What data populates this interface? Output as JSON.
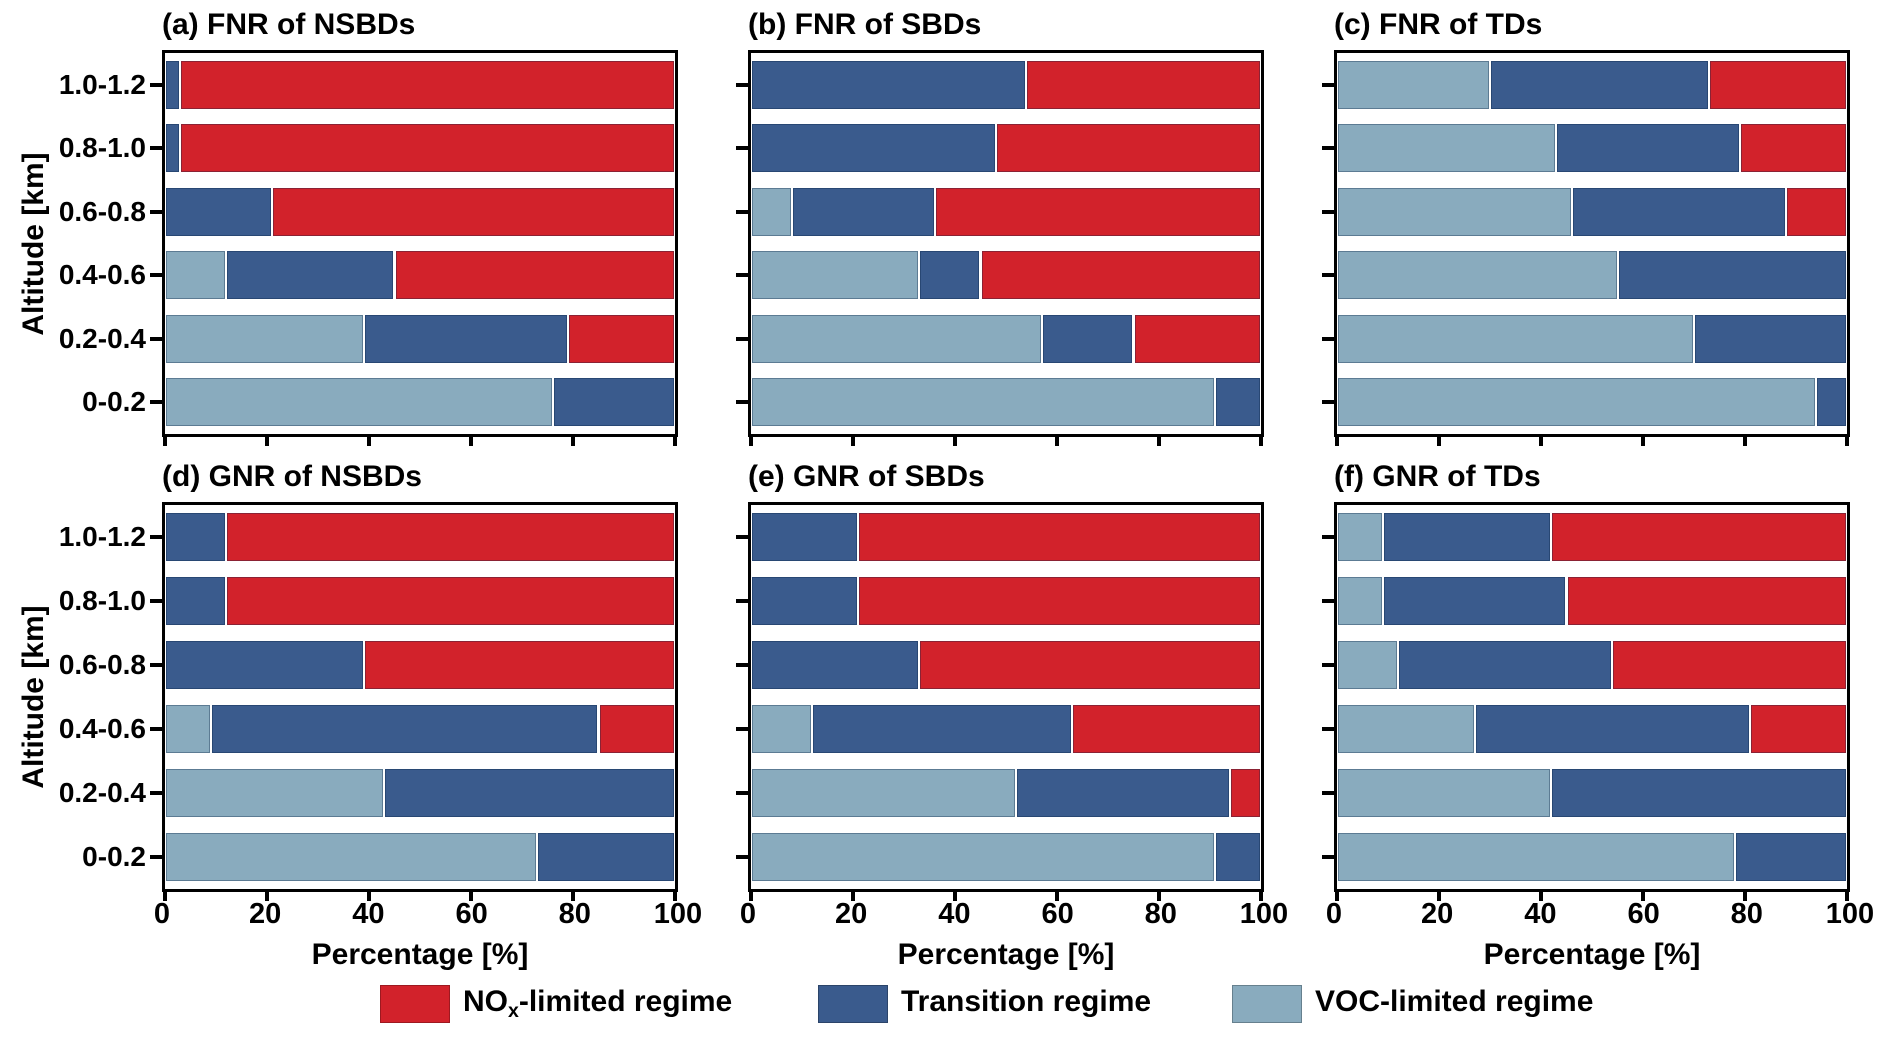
{
  "axis": {
    "x_label": "Percentage [%]",
    "y_label": "Altitude [km]",
    "x_ticks": [
      "0",
      "20",
      "40",
      "60",
      "80",
      "100"
    ],
    "y_categories": [
      "1.0-1.2",
      "0.8-1.0",
      "0.6-0.8",
      "0.4-0.6",
      "0.2-0.4",
      "0-0.2"
    ]
  },
  "colors": {
    "nox_limited": "#d2222b",
    "transition": "#3a5b8d",
    "voc_limited": "#89abbe",
    "axis_black": "#000000",
    "background": "#ffffff"
  },
  "legend": {
    "items": [
      {
        "pre": "NO",
        "sub": "x",
        "post": "-limited regime",
        "color": "#d2222b"
      },
      {
        "pre": "Transition regime",
        "sub": "",
        "post": "",
        "color": "#3a5b8d"
      },
      {
        "pre": "VOC-limited regime",
        "sub": "",
        "post": "",
        "color": "#89abbe"
      }
    ]
  },
  "chart_data": [
    {
      "id": "a",
      "title": "(a) FNR of NSBDs",
      "type": "bar",
      "orientation": "horizontal-stacked",
      "xlim": [
        0,
        100
      ],
      "grid": false,
      "categories": [
        "1.0-1.2",
        "0.8-1.0",
        "0.6-0.8",
        "0.4-0.6",
        "0.2-0.4",
        "0-0.2"
      ],
      "series": [
        {
          "name": "VOC-limited regime",
          "color": "#89abbe",
          "values": [
            0,
            0,
            0,
            12,
            39,
            76
          ]
        },
        {
          "name": "Transition regime",
          "color": "#3a5b8d",
          "values": [
            3,
            3,
            21,
            33,
            40,
            24
          ]
        },
        {
          "name": "NOx-limited regime",
          "color": "#d2222b",
          "values": [
            97,
            97,
            79,
            55,
            21,
            0
          ]
        }
      ]
    },
    {
      "id": "b",
      "title": "(b) FNR of SBDs",
      "type": "bar",
      "orientation": "horizontal-stacked",
      "xlim": [
        0,
        100
      ],
      "grid": false,
      "categories": [
        "1.0-1.2",
        "0.8-1.0",
        "0.6-0.8",
        "0.4-0.6",
        "0.2-0.4",
        "0-0.2"
      ],
      "series": [
        {
          "name": "VOC-limited regime",
          "color": "#89abbe",
          "values": [
            0,
            0,
            8,
            33,
            57,
            91
          ]
        },
        {
          "name": "Transition regime",
          "color": "#3a5b8d",
          "values": [
            54,
            48,
            28,
            12,
            18,
            9
          ]
        },
        {
          "name": "NOx-limited regime",
          "color": "#d2222b",
          "values": [
            46,
            52,
            64,
            55,
            25,
            0
          ]
        }
      ]
    },
    {
      "id": "c",
      "title": "(c) FNR of TDs",
      "type": "bar",
      "orientation": "horizontal-stacked",
      "xlim": [
        0,
        100
      ],
      "grid": false,
      "categories": [
        "1.0-1.2",
        "0.8-1.0",
        "0.6-0.8",
        "0.4-0.6",
        "0.2-0.4",
        "0-0.2"
      ],
      "series": [
        {
          "name": "VOC-limited regime",
          "color": "#89abbe",
          "values": [
            30,
            43,
            46,
            55,
            70,
            94
          ]
        },
        {
          "name": "Transition regime",
          "color": "#3a5b8d",
          "values": [
            43,
            36,
            42,
            45,
            30,
            6
          ]
        },
        {
          "name": "NOx-limited regime",
          "color": "#d2222b",
          "values": [
            27,
            21,
            12,
            0,
            0,
            0
          ]
        }
      ]
    },
    {
      "id": "d",
      "title": "(d) GNR of NSBDs",
      "type": "bar",
      "orientation": "horizontal-stacked",
      "xlim": [
        0,
        100
      ],
      "grid": false,
      "categories": [
        "1.0-1.2",
        "0.8-1.0",
        "0.6-0.8",
        "0.4-0.6",
        "0.2-0.4",
        "0-0.2"
      ],
      "series": [
        {
          "name": "VOC-limited regime",
          "color": "#89abbe",
          "values": [
            0,
            0,
            0,
            9,
            43,
            73
          ]
        },
        {
          "name": "Transition regime",
          "color": "#3a5b8d",
          "values": [
            12,
            12,
            39,
            76,
            57,
            27
          ]
        },
        {
          "name": "NOx-limited regime",
          "color": "#d2222b",
          "values": [
            88,
            88,
            61,
            15,
            0,
            0
          ]
        }
      ]
    },
    {
      "id": "e",
      "title": "(e) GNR of SBDs",
      "type": "bar",
      "orientation": "horizontal-stacked",
      "xlim": [
        0,
        100
      ],
      "grid": false,
      "categories": [
        "1.0-1.2",
        "0.8-1.0",
        "0.6-0.8",
        "0.4-0.6",
        "0.2-0.4",
        "0-0.2"
      ],
      "series": [
        {
          "name": "VOC-limited regime",
          "color": "#89abbe",
          "values": [
            0,
            0,
            0,
            12,
            52,
            91
          ]
        },
        {
          "name": "Transition regime",
          "color": "#3a5b8d",
          "values": [
            21,
            21,
            33,
            51,
            42,
            9
          ]
        },
        {
          "name": "NOx-limited regime",
          "color": "#d2222b",
          "values": [
            79,
            79,
            67,
            37,
            6,
            0
          ]
        }
      ]
    },
    {
      "id": "f",
      "title": "(f) GNR of TDs",
      "type": "bar",
      "orientation": "horizontal-stacked",
      "xlim": [
        0,
        100
      ],
      "grid": false,
      "categories": [
        "1.0-1.2",
        "0.8-1.0",
        "0.6-0.8",
        "0.4-0.6",
        "0.2-0.4",
        "0-0.2"
      ],
      "series": [
        {
          "name": "VOC-limited regime",
          "color": "#89abbe",
          "values": [
            9,
            9,
            12,
            27,
            42,
            78
          ]
        },
        {
          "name": "Transition regime",
          "color": "#3a5b8d",
          "values": [
            33,
            36,
            42,
            54,
            58,
            22
          ]
        },
        {
          "name": "NOx-limited regime",
          "color": "#d2222b",
          "values": [
            58,
            55,
            46,
            19,
            0,
            0
          ]
        }
      ]
    }
  ]
}
